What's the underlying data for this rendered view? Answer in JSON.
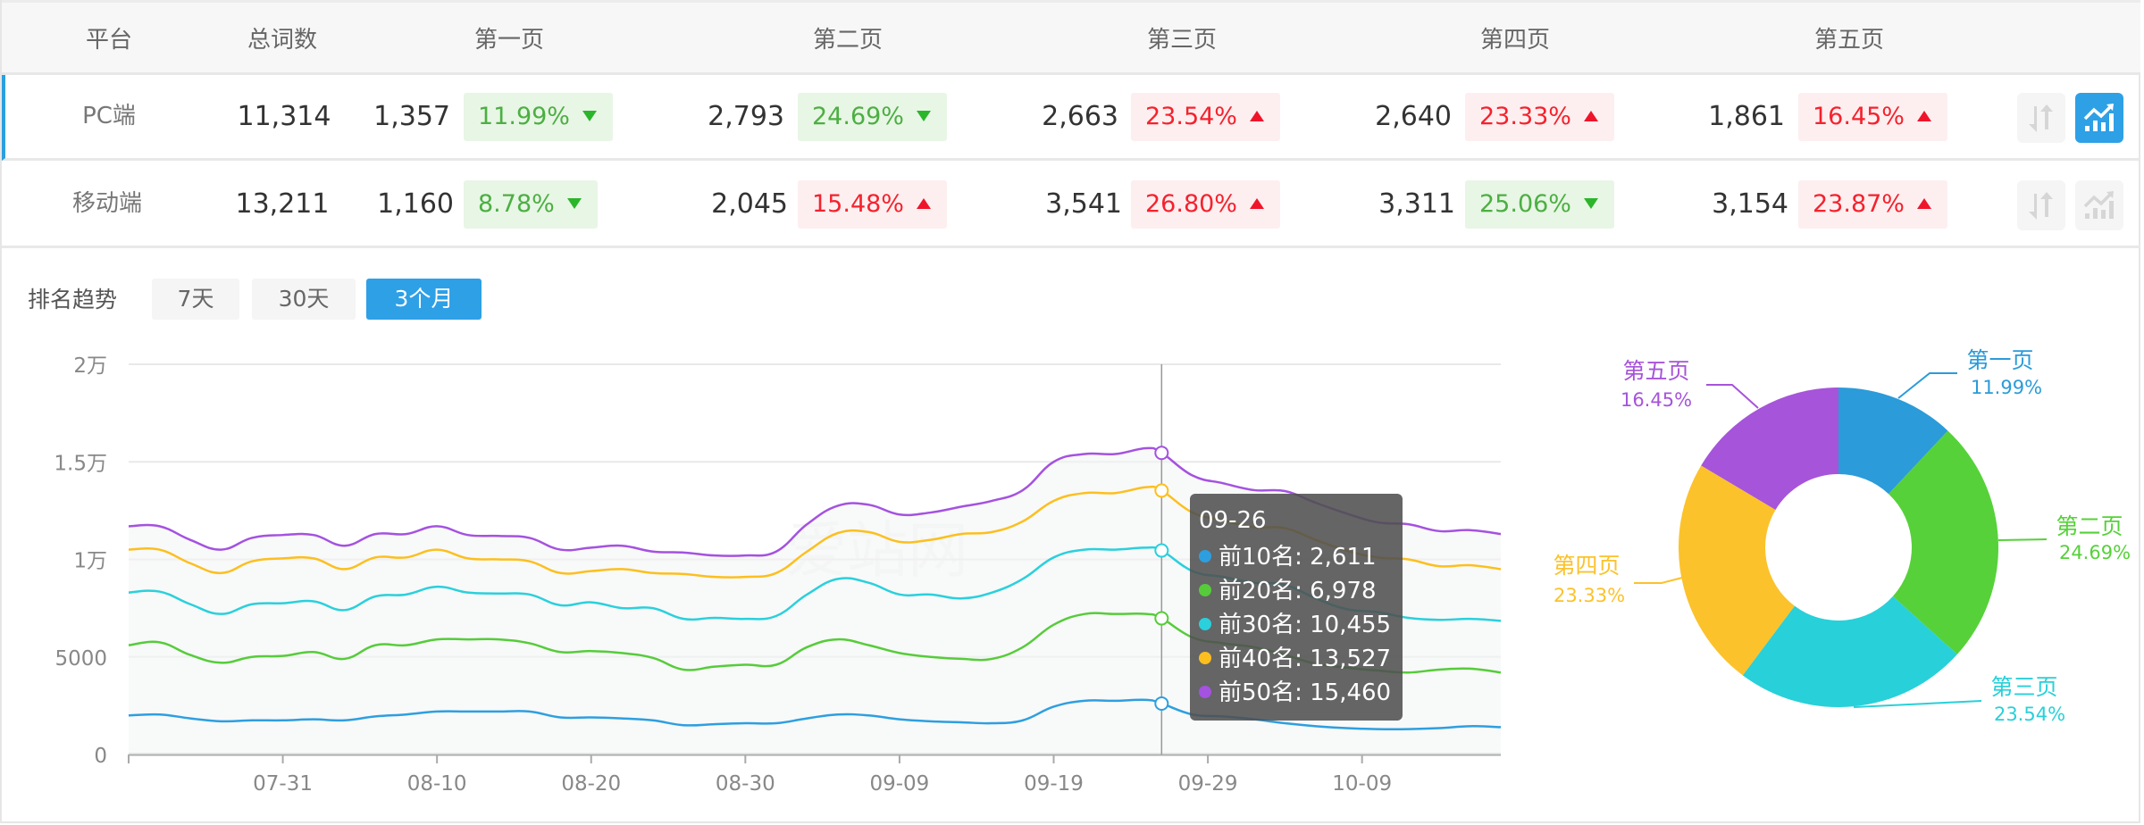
{
  "table": {
    "headers": [
      "平台",
      "总词数",
      "第一页",
      "第二页",
      "第三页",
      "第四页",
      "第五页"
    ],
    "rows": [
      {
        "platform": "PC端",
        "total": "11,314",
        "active": true,
        "pages": [
          {
            "count": "1,357",
            "pct": "11.99%",
            "trend": "down"
          },
          {
            "count": "2,793",
            "pct": "24.69%",
            "trend": "down"
          },
          {
            "count": "2,663",
            "pct": "23.54%",
            "trend": "up"
          },
          {
            "count": "2,640",
            "pct": "23.33%",
            "trend": "up"
          },
          {
            "count": "1,861",
            "pct": "16.45%",
            "trend": "up"
          }
        ]
      },
      {
        "platform": "移动端",
        "total": "13,211",
        "active": false,
        "pages": [
          {
            "count": "1,160",
            "pct": "8.78%",
            "trend": "down"
          },
          {
            "count": "2,045",
            "pct": "15.48%",
            "trend": "up"
          },
          {
            "count": "3,541",
            "pct": "26.80%",
            "trend": "up"
          },
          {
            "count": "3,311",
            "pct": "25.06%",
            "trend": "down"
          },
          {
            "count": "3,154",
            "pct": "23.87%",
            "trend": "up"
          }
        ]
      }
    ],
    "row_icons": [
      "sort-arrows-icon",
      "trend-chart-icon"
    ]
  },
  "trend": {
    "label": "排名趋势",
    "ranges": [
      {
        "label": "7天",
        "active": false
      },
      {
        "label": "30天",
        "active": false
      },
      {
        "label": "3个月",
        "active": true
      }
    ],
    "watermark": "爱站网"
  },
  "colors": {
    "accent": "#2ea0e6",
    "up": "#f5222d",
    "down": "#4caf43"
  },
  "chart_data": [
    {
      "type": "line",
      "ylim": [
        0,
        20000
      ],
      "yticks": [
        {
          "v": 0,
          "label": "0"
        },
        {
          "v": 5000,
          "label": "5000"
        },
        {
          "v": 10000,
          "label": "1万"
        },
        {
          "v": 15000,
          "label": "1.5万"
        },
        {
          "v": 20000,
          "label": "2万"
        }
      ],
      "xticks": [
        "07-31",
        "08-10",
        "08-20",
        "08-30",
        "09-09",
        "09-19",
        "09-29",
        "10-09"
      ],
      "grid": true,
      "x": [
        "07-21",
        "07-23",
        "07-25",
        "07-27",
        "07-29",
        "07-31",
        "08-02",
        "08-04",
        "08-06",
        "08-08",
        "08-10",
        "08-12",
        "08-14",
        "08-16",
        "08-18",
        "08-20",
        "08-22",
        "08-24",
        "08-26",
        "08-28",
        "08-30",
        "09-01",
        "09-03",
        "09-05",
        "09-07",
        "09-09",
        "09-11",
        "09-13",
        "09-15",
        "09-17",
        "09-19",
        "09-21",
        "09-23",
        "09-25",
        "09-26",
        "09-28",
        "09-30",
        "10-02",
        "10-04",
        "10-06",
        "10-08",
        "10-10",
        "10-12",
        "10-14",
        "10-16",
        "10-18"
      ],
      "series": [
        {
          "name": "前10名",
          "color": "#2d9fe0",
          "values": [
            2000,
            2050,
            1850,
            1700,
            1750,
            1750,
            1800,
            1750,
            1950,
            2050,
            2200,
            2200,
            2200,
            2200,
            1900,
            1900,
            1850,
            1750,
            1500,
            1550,
            1600,
            1600,
            1850,
            2050,
            2000,
            1800,
            1700,
            1650,
            1600,
            1750,
            2450,
            2750,
            2750,
            2800,
            2611,
            2050,
            1950,
            1800,
            1600,
            1450,
            1350,
            1300,
            1300,
            1350,
            1450,
            1400
          ]
        },
        {
          "name": "前20名",
          "color": "#56cc3a",
          "values": [
            5600,
            5750,
            5100,
            4700,
            5000,
            5050,
            5250,
            4900,
            5600,
            5600,
            5900,
            5900,
            5900,
            5700,
            5250,
            5300,
            5200,
            4950,
            4350,
            4500,
            4600,
            4600,
            5500,
            5900,
            5600,
            5200,
            5000,
            4900,
            4900,
            5500,
            6650,
            7200,
            7200,
            7200,
            6978,
            6000,
            5700,
            5500,
            5100,
            4650,
            4450,
            4300,
            4200,
            4350,
            4400,
            4200
          ]
        },
        {
          "name": "前30名",
          "color": "#2ad0dc",
          "values": [
            8300,
            8350,
            7700,
            7200,
            7700,
            7750,
            7850,
            7400,
            8100,
            8200,
            8600,
            8300,
            8250,
            8200,
            7650,
            7800,
            7500,
            7500,
            6950,
            7000,
            6950,
            7100,
            8200,
            9000,
            8800,
            8200,
            8200,
            8000,
            8300,
            9000,
            10100,
            10500,
            10500,
            10600,
            10455,
            9400,
            9100,
            8800,
            8700,
            8000,
            7450,
            7300,
            7000,
            6900,
            6950,
            6850
          ]
        },
        {
          "name": "前40名",
          "color": "#fcbf1e",
          "values": [
            10500,
            10500,
            9800,
            9300,
            9900,
            10050,
            10050,
            9500,
            10100,
            10100,
            10500,
            10050,
            10000,
            9900,
            9300,
            9400,
            9500,
            9300,
            9250,
            9100,
            9100,
            9300,
            10400,
            11350,
            11400,
            10900,
            11000,
            11300,
            11400,
            11950,
            13000,
            13400,
            13400,
            13700,
            13527,
            12400,
            12000,
            11650,
            11600,
            11000,
            10450,
            10100,
            10000,
            9650,
            9700,
            9500
          ]
        },
        {
          "name": "前50名",
          "color": "#a452e0",
          "values": [
            11700,
            11700,
            11000,
            10500,
            11100,
            11250,
            11250,
            10700,
            11300,
            11300,
            11700,
            11250,
            11200,
            11100,
            10500,
            10600,
            10700,
            10400,
            10350,
            10200,
            10200,
            10400,
            11800,
            12750,
            12800,
            12300,
            12400,
            12700,
            13000,
            13550,
            15000,
            15400,
            15400,
            15700,
            15460,
            14300,
            13900,
            13550,
            13500,
            12900,
            12350,
            11900,
            11800,
            11450,
            11500,
            11300
          ]
        }
      ],
      "tooltip": {
        "title": "09-26",
        "items": [
          {
            "label": "前10名: 2,611",
            "color": "#2d9fe0"
          },
          {
            "label": "前20名: 6,978",
            "color": "#56cc3a"
          },
          {
            "label": "前30名: 10,455",
            "color": "#2ad0dc"
          },
          {
            "label": "前40名: 13,527",
            "color": "#fcbf1e"
          },
          {
            "label": "前50名: 15,460",
            "color": "#a452e0"
          }
        ]
      }
    },
    {
      "type": "pie",
      "donut": true,
      "slices": [
        {
          "name": "第一页",
          "value": 11.99,
          "label": "11.99%",
          "color": "#2b9bd9"
        },
        {
          "name": "第二页",
          "value": 24.69,
          "label": "24.69%",
          "color": "#56d13a"
        },
        {
          "name": "第三页",
          "value": 23.54,
          "label": "23.54%",
          "color": "#28d0d9"
        },
        {
          "name": "第四页",
          "value": 23.33,
          "label": "23.33%",
          "color": "#fbc22b"
        },
        {
          "name": "第五页",
          "value": 16.45,
          "label": "16.45%",
          "color": "#a654da"
        }
      ]
    }
  ]
}
